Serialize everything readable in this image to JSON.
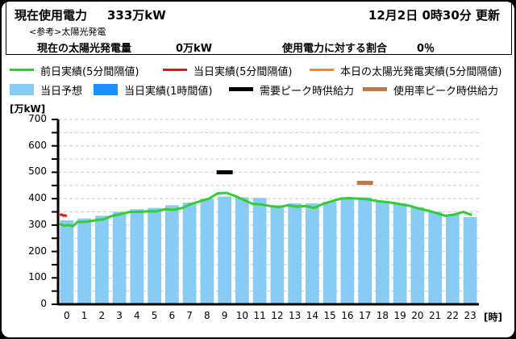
{
  "header": {
    "current_label": "現在使用電力",
    "current_value": "333万kW",
    "updated": "12月2日  0時30分 更新",
    "reference_label": "<参考>太陽光発電",
    "solar_label": "現在の太陽光発電量",
    "solar_value": "0万kW",
    "ratio_label": "使用電力に対する割合",
    "ratio_value": "0％"
  },
  "legend": [
    {
      "label": "前日実績(5分間隔値)",
      "color": "#33cc33",
      "type": "line"
    },
    {
      "label": "当日実績(5分間隔値)",
      "color": "#ee1111",
      "type": "line"
    },
    {
      "label": "本日の太陽光発電実績(5分間隔値)",
      "color": "#ff8800",
      "type": "line"
    },
    {
      "label": "当日予想",
      "color": "#88ccf5",
      "type": "box"
    },
    {
      "label": "当日実績(1時間値)",
      "color": "#1e8fff",
      "type": "box"
    },
    {
      "label": "需要ピーク時供給力",
      "color": "#000000",
      "type": "line"
    },
    {
      "label": "使用率ピーク時供給力",
      "color": "#c0794a",
      "type": "line"
    }
  ],
  "chart_data": {
    "type": "bar",
    "title": "",
    "ylabel": "[万kW]",
    "xlabel": "[時]",
    "ylim": [
      0,
      700
    ],
    "yticks": [
      0,
      100,
      200,
      300,
      400,
      500,
      600,
      700
    ],
    "grid": true,
    "categories": [
      "0",
      "1",
      "2",
      "3",
      "4",
      "5",
      "6",
      "7",
      "8",
      "9",
      "10",
      "11",
      "12",
      "13",
      "14",
      "15",
      "16",
      "17",
      "18",
      "19",
      "20",
      "21",
      "22",
      "23"
    ],
    "series": [
      {
        "name": "当日予想",
        "type": "bar",
        "color": "#88ccf5",
        "values": [
          318,
          325,
          335,
          350,
          360,
          365,
          375,
          385,
          400,
          408,
          405,
          403,
          375,
          382,
          382,
          388,
          403,
          405,
          392,
          383,
          368,
          350,
          340,
          330
        ]
      },
      {
        "name": "前日実績(5分間隔値)",
        "type": "line",
        "color": "#33cc33",
        "x": [
          0,
          0.25,
          0.5,
          0.75,
          1,
          1.5,
          2,
          2.5,
          3,
          3.5,
          4,
          4.5,
          5,
          5.5,
          6,
          6.5,
          7,
          7.5,
          8,
          8.5,
          9,
          9.5,
          10,
          10.5,
          11,
          11.5,
          12,
          12.5,
          13,
          13.5,
          14,
          14.5,
          15,
          15.5,
          16,
          16.5,
          17,
          17.5,
          18,
          18.5,
          19,
          19.5,
          20,
          20.5,
          21,
          21.5,
          22,
          22.5,
          23,
          23.5
        ],
        "values": [
          305,
          298,
          300,
          296,
          312,
          312,
          318,
          322,
          335,
          342,
          350,
          350,
          352,
          352,
          360,
          358,
          365,
          380,
          390,
          400,
          420,
          422,
          410,
          395,
          380,
          378,
          372,
          368,
          375,
          370,
          372,
          365,
          380,
          390,
          400,
          402,
          400,
          398,
          392,
          388,
          384,
          378,
          372,
          362,
          355,
          345,
          335,
          340,
          350,
          338
        ]
      },
      {
        "name": "当日実績(5分間隔値)",
        "type": "line",
        "color": "#ee1111",
        "x": [
          0,
          0.1,
          0.2,
          0.3,
          0.4
        ],
        "values": [
          338,
          340,
          336,
          337,
          333
        ]
      },
      {
        "name": "本日の太陽光発電実績(5分間隔値)",
        "type": "line",
        "color": "#ff8800",
        "x": [
          0,
          0.4
        ],
        "values": [
          0,
          0
        ]
      },
      {
        "name": "需要ピーク時供給力",
        "type": "marker",
        "color": "#000000",
        "x": 9,
        "value": 500
      },
      {
        "name": "使用率ピーク時供給力",
        "type": "marker",
        "color": "#c0794a",
        "x": 17,
        "value": 460
      }
    ]
  }
}
